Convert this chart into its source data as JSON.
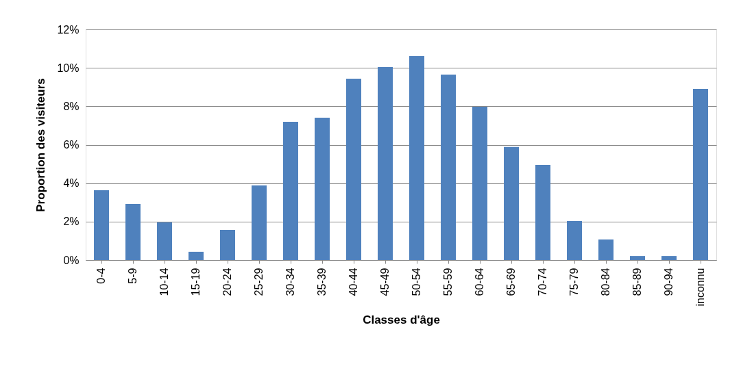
{
  "chart_data": {
    "type": "bar",
    "xlabel": "Classes d'âge",
    "ylabel": "Proportion des visiteurs",
    "categories": [
      "0-4",
      "5-9",
      "10-14",
      "15-19",
      "20-24",
      "25-29",
      "30-34",
      "35-39",
      "40-44",
      "45-49",
      "50-54",
      "55-59",
      "60-64",
      "65-69",
      "70-74",
      "75-79",
      "80-84",
      "85-89",
      "90-94",
      "inconnu"
    ],
    "values": [
      3.63,
      2.92,
      1.96,
      0.43,
      1.57,
      3.88,
      7.19,
      7.41,
      9.44,
      10.04,
      10.61,
      9.65,
      7.98,
      5.88,
      4.95,
      2.03,
      1.07,
      0.21,
      0.21,
      8.9
    ],
    "color": "#4f81bd",
    "ylim": [
      0,
      12
    ],
    "yticks": [
      {
        "value": 0,
        "label": "0%"
      },
      {
        "value": 2,
        "label": "2%"
      },
      {
        "value": 4,
        "label": "4%"
      },
      {
        "value": 6,
        "label": "6%"
      },
      {
        "value": 8,
        "label": "8%"
      },
      {
        "value": 10,
        "label": "10%"
      },
      {
        "value": 12,
        "label": "12%"
      }
    ],
    "grid": "y"
  }
}
